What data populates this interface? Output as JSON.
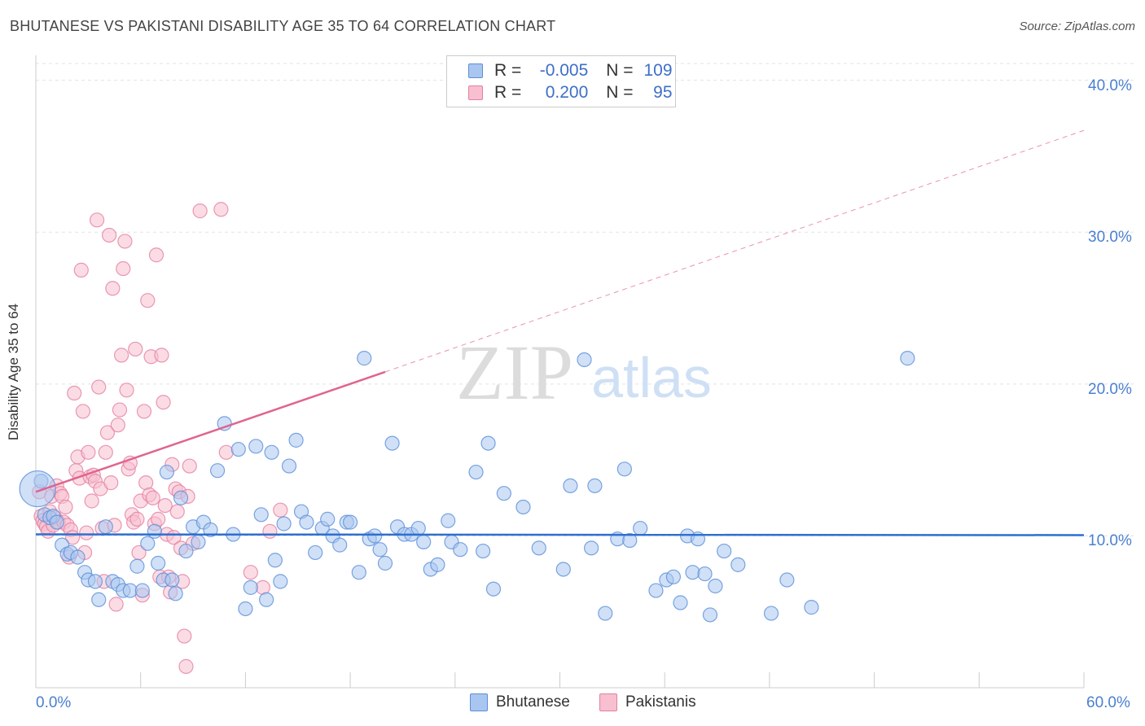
{
  "header": {
    "title": "BHUTANESE VS PAKISTANI DISABILITY AGE 35 TO 64 CORRELATION CHART",
    "source": "Source: ZipAtlas.com"
  },
  "watermark": {
    "zip": "ZIP",
    "atlas": "atlas"
  },
  "colors": {
    "bhutanese_fill": "#a9c6f0",
    "bhutanese_stroke": "#5b8fd8",
    "bhutanese_line": "#2f6fd0",
    "pakistani_fill": "#f7bfd0",
    "pakistani_stroke": "#e57fa0",
    "pakistani_line": "#e0648f",
    "tick_label": "#4a7fd0"
  },
  "legend_top": {
    "rows": [
      {
        "r_label": "R =",
        "r_value": "-0.005",
        "n_label": "N =",
        "n_value": "109"
      },
      {
        "r_label": "R =",
        "r_value": "0.200",
        "n_label": "N =",
        "n_value": "95"
      }
    ]
  },
  "legend_bottom": {
    "series1": "Bhutanese",
    "series2": "Pakistanis"
  },
  "chart_data": {
    "type": "scatter",
    "title": "BHUTANESE VS PAKISTANI DISABILITY AGE 35 TO 64 CORRELATION CHART",
    "ylabel": "Disability Age 35 to 64",
    "xlim": [
      0,
      60
    ],
    "ylim": [
      0,
      41
    ],
    "x_tick_labels": [
      "0.0%",
      "60.0%"
    ],
    "y_ticks": [
      10,
      20,
      30,
      40
    ],
    "y_tick_labels": [
      "10.0%",
      "20.0%",
      "30.0%",
      "40.0%"
    ],
    "grid": "horizontal dashed",
    "legend": "top-center",
    "series": [
      {
        "name": "Bhutanese",
        "R": -0.005,
        "N": 109,
        "trend": {
          "x0": 0,
          "y0": 10.1,
          "x1": 60,
          "y1": 10.05
        },
        "points": [
          [
            0.3,
            13.6
          ],
          [
            0.5,
            11.4
          ],
          [
            0.8,
            11.2
          ],
          [
            1.0,
            11.3
          ],
          [
            1.2,
            10.9
          ],
          [
            1.5,
            9.4
          ],
          [
            1.8,
            8.8
          ],
          [
            2.0,
            8.9
          ],
          [
            2.4,
            8.6
          ],
          [
            2.8,
            7.6
          ],
          [
            3.0,
            7.1
          ],
          [
            3.4,
            7.0
          ],
          [
            3.6,
            5.8
          ],
          [
            4.0,
            10.6
          ],
          [
            4.4,
            7.0
          ],
          [
            4.7,
            6.8
          ],
          [
            5.0,
            6.4
          ],
          [
            5.4,
            6.4
          ],
          [
            5.8,
            8.0
          ],
          [
            6.1,
            6.4
          ],
          [
            6.4,
            9.5
          ],
          [
            6.8,
            10.3
          ],
          [
            7.0,
            8.2
          ],
          [
            7.3,
            7.1
          ],
          [
            7.5,
            14.2
          ],
          [
            7.8,
            7.1
          ],
          [
            8.0,
            6.2
          ],
          [
            8.3,
            12.5
          ],
          [
            8.6,
            9.0
          ],
          [
            9.0,
            10.6
          ],
          [
            9.3,
            9.6
          ],
          [
            9.6,
            10.9
          ],
          [
            10.0,
            10.4
          ],
          [
            10.4,
            14.3
          ],
          [
            10.8,
            17.4
          ],
          [
            11.3,
            10.1
          ],
          [
            11.6,
            15.7
          ],
          [
            12.0,
            5.2
          ],
          [
            12.3,
            6.6
          ],
          [
            12.6,
            15.9
          ],
          [
            12.9,
            11.4
          ],
          [
            13.2,
            5.8
          ],
          [
            13.5,
            15.5
          ],
          [
            13.7,
            8.4
          ],
          [
            14.0,
            7.0
          ],
          [
            14.2,
            10.8
          ],
          [
            14.5,
            14.6
          ],
          [
            14.9,
            16.3
          ],
          [
            15.2,
            11.6
          ],
          [
            15.5,
            10.9
          ],
          [
            16.0,
            8.9
          ],
          [
            16.4,
            10.5
          ],
          [
            16.7,
            11.1
          ],
          [
            17.0,
            10.0
          ],
          [
            17.4,
            9.4
          ],
          [
            17.8,
            10.9
          ],
          [
            18.0,
            10.9
          ],
          [
            18.5,
            7.6
          ],
          [
            18.8,
            21.7
          ],
          [
            19.1,
            9.8
          ],
          [
            19.4,
            10.0
          ],
          [
            19.7,
            9.1
          ],
          [
            20.0,
            8.2
          ],
          [
            20.4,
            16.1
          ],
          [
            20.7,
            10.6
          ],
          [
            21.1,
            10.1
          ],
          [
            21.5,
            10.1
          ],
          [
            21.9,
            10.5
          ],
          [
            22.2,
            9.6
          ],
          [
            22.6,
            7.8
          ],
          [
            23.0,
            8.1
          ],
          [
            23.6,
            11.0
          ],
          [
            23.8,
            9.6
          ],
          [
            24.3,
            9.1
          ],
          [
            25.2,
            14.2
          ],
          [
            25.6,
            9.0
          ],
          [
            25.9,
            16.1
          ],
          [
            26.2,
            6.5
          ],
          [
            26.8,
            12.8
          ],
          [
            27.9,
            11.9
          ],
          [
            28.8,
            9.2
          ],
          [
            30.2,
            7.8
          ],
          [
            30.6,
            13.3
          ],
          [
            31.4,
            21.6
          ],
          [
            31.8,
            9.2
          ],
          [
            32.0,
            13.3
          ],
          [
            32.6,
            4.9
          ],
          [
            33.3,
            9.8
          ],
          [
            33.7,
            14.4
          ],
          [
            34.0,
            9.7
          ],
          [
            34.6,
            10.5
          ],
          [
            35.5,
            6.4
          ],
          [
            36.1,
            7.1
          ],
          [
            36.5,
            7.3
          ],
          [
            36.9,
            5.6
          ],
          [
            37.3,
            10.0
          ],
          [
            37.6,
            7.6
          ],
          [
            37.9,
            9.8
          ],
          [
            38.3,
            7.5
          ],
          [
            38.6,
            4.8
          ],
          [
            38.9,
            6.7
          ],
          [
            39.4,
            9.0
          ],
          [
            40.2,
            8.1
          ],
          [
            42.1,
            4.9
          ],
          [
            43.0,
            7.1
          ],
          [
            44.4,
            5.3
          ],
          [
            49.9,
            21.7
          ]
        ]
      },
      {
        "name": "Pakistanis",
        "R": 0.2,
        "N": 95,
        "trend_solid": {
          "x0": 0,
          "y0": 12.9,
          "x1": 20,
          "y1": 20.8
        },
        "trend_dashed": {
          "x0": 20,
          "y0": 20.8,
          "x1": 60,
          "y1": 36.7
        },
        "points": [
          [
            0.2,
            12.9
          ],
          [
            0.3,
            11.3
          ],
          [
            0.4,
            11.0
          ],
          [
            0.5,
            10.8
          ],
          [
            0.6,
            10.6
          ],
          [
            0.7,
            10.3
          ],
          [
            0.8,
            11.6
          ],
          [
            0.9,
            12.6
          ],
          [
            1.0,
            10.7
          ],
          [
            1.1,
            11.2
          ],
          [
            1.2,
            13.3
          ],
          [
            1.3,
            10.9
          ],
          [
            1.4,
            12.8
          ],
          [
            1.5,
            12.6
          ],
          [
            1.6,
            10.9
          ],
          [
            1.7,
            11.9
          ],
          [
            1.8,
            10.7
          ],
          [
            1.9,
            8.6
          ],
          [
            2.0,
            10.4
          ],
          [
            2.1,
            9.9
          ],
          [
            2.2,
            19.4
          ],
          [
            2.3,
            14.3
          ],
          [
            2.4,
            15.2
          ],
          [
            2.5,
            13.8
          ],
          [
            2.6,
            27.5
          ],
          [
            2.7,
            18.2
          ],
          [
            2.8,
            8.9
          ],
          [
            2.9,
            10.2
          ],
          [
            3.0,
            15.5
          ],
          [
            3.1,
            13.9
          ],
          [
            3.2,
            12.3
          ],
          [
            3.3,
            14.0
          ],
          [
            3.4,
            13.6
          ],
          [
            3.5,
            30.8
          ],
          [
            3.6,
            19.8
          ],
          [
            3.7,
            13.1
          ],
          [
            3.8,
            10.5
          ],
          [
            3.9,
            7.0
          ],
          [
            4.0,
            15.5
          ],
          [
            4.1,
            16.8
          ],
          [
            4.2,
            29.8
          ],
          [
            4.3,
            13.5
          ],
          [
            4.4,
            26.3
          ],
          [
            4.5,
            10.7
          ],
          [
            4.6,
            5.5
          ],
          [
            4.7,
            17.3
          ],
          [
            4.8,
            18.3
          ],
          [
            4.9,
            21.9
          ],
          [
            5.0,
            27.6
          ],
          [
            5.1,
            29.4
          ],
          [
            5.2,
            19.6
          ],
          [
            5.3,
            14.4
          ],
          [
            5.4,
            14.8
          ],
          [
            5.5,
            11.4
          ],
          [
            5.6,
            10.9
          ],
          [
            5.7,
            22.3
          ],
          [
            5.8,
            11.1
          ],
          [
            5.9,
            8.9
          ],
          [
            6.0,
            12.3
          ],
          [
            6.1,
            6.1
          ],
          [
            6.2,
            18.2
          ],
          [
            6.3,
            13.5
          ],
          [
            6.4,
            25.5
          ],
          [
            6.5,
            12.7
          ],
          [
            6.6,
            21.8
          ],
          [
            6.7,
            12.5
          ],
          [
            6.8,
            10.8
          ],
          [
            6.9,
            28.5
          ],
          [
            7.0,
            11.1
          ],
          [
            7.1,
            7.3
          ],
          [
            7.2,
            21.9
          ],
          [
            7.3,
            18.8
          ],
          [
            7.4,
            12.0
          ],
          [
            7.5,
            10.1
          ],
          [
            7.6,
            7.3
          ],
          [
            7.7,
            6.3
          ],
          [
            7.8,
            14.7
          ],
          [
            7.9,
            9.9
          ],
          [
            8.0,
            13.1
          ],
          [
            8.1,
            11.6
          ],
          [
            8.2,
            12.9
          ],
          [
            8.3,
            9.2
          ],
          [
            8.4,
            7.0
          ],
          [
            8.5,
            3.4
          ],
          [
            8.6,
            1.4
          ],
          [
            8.7,
            12.6
          ],
          [
            8.8,
            14.6
          ],
          [
            9.0,
            9.5
          ],
          [
            9.4,
            31.4
          ],
          [
            10.6,
            31.5
          ],
          [
            10.9,
            15.5
          ],
          [
            12.3,
            7.6
          ],
          [
            13.0,
            6.6
          ],
          [
            13.4,
            10.3
          ],
          [
            14.0,
            11.7
          ]
        ]
      }
    ]
  }
}
